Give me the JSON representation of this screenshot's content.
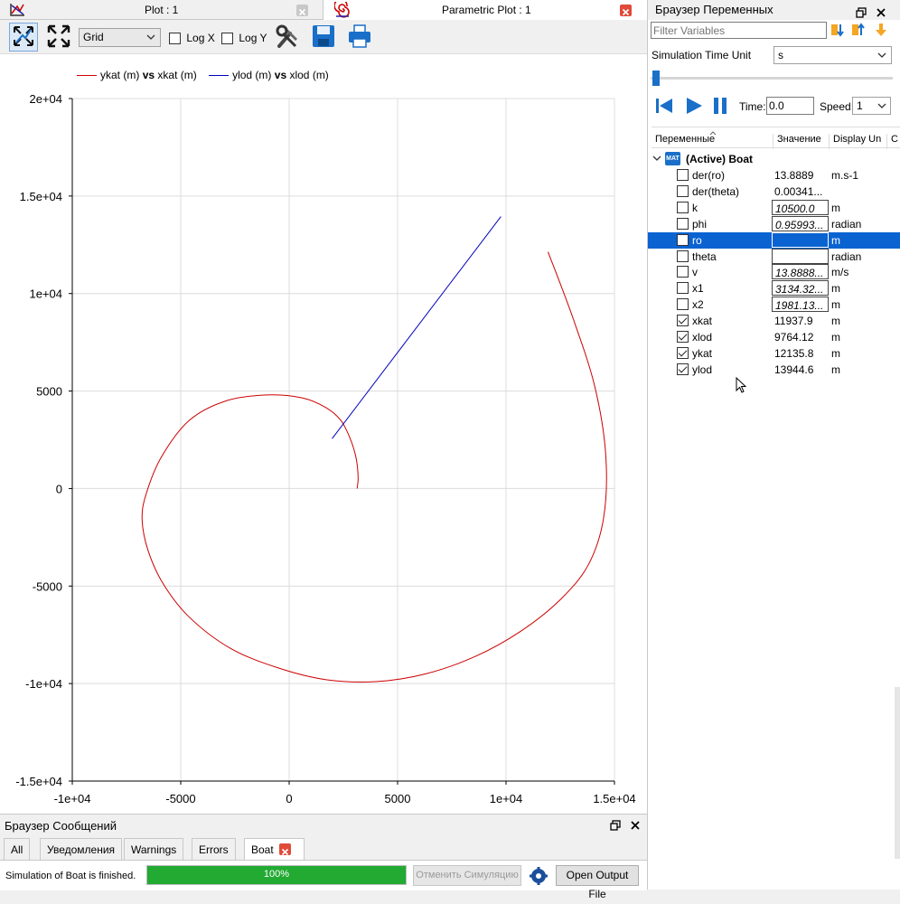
{
  "plot_window": {
    "tab_plot": "Plot : 1",
    "tab_parametric": "Parametric Plot : 1",
    "grid_select": "Grid",
    "logx_label": "Log X",
    "logy_label": "Log Y"
  },
  "colors": {
    "series1": "#cc0000",
    "series2": "#0000bb",
    "selected": "#0a63d1",
    "progress": "#22aa33"
  },
  "chart_data": {
    "type": "line",
    "legend": [
      {
        "y": "ykat (m)",
        "vs": "vs",
        "x": "xkat (m)"
      },
      {
        "y": "ylod (m)",
        "vs": "vs",
        "x": "xlod (m)"
      }
    ],
    "xlim": [
      -10000,
      15000
    ],
    "ylim": [
      -15000,
      20000
    ],
    "x_ticks": [
      "-1e+04",
      "-5000",
      "0",
      "5000",
      "1e+04",
      "1.5e+04"
    ],
    "y_ticks": [
      "2e+04",
      "1.5e+04",
      "1e+04",
      "5000",
      "0",
      "-5000",
      "-1e+04",
      "-1.5e+04"
    ],
    "grid": true,
    "legend_position": "top-left",
    "series": [
      {
        "name": "ykat (m) vs xkat (m)",
        "x": [
          3134,
          3180,
          3080,
          2800,
          2380,
          1700,
          600,
          -1000,
          -2900,
          -4600,
          -5900,
          -6600,
          -6780,
          -6500,
          -5800,
          -4600,
          -2700,
          -500,
          1700,
          4000,
          6300,
          8600,
          10700,
          12500,
          13800,
          14500,
          14600,
          14100,
          13100,
          11937
        ],
        "y": [
          0,
          600,
          1600,
          2600,
          3500,
          4150,
          4650,
          4800,
          4500,
          3500,
          1600,
          -300,
          -1600,
          -3200,
          -4900,
          -6600,
          -8200,
          -9200,
          -9800,
          -9900,
          -9500,
          -8600,
          -7300,
          -5700,
          -3900,
          -1500,
          1700,
          5200,
          8700,
          12136
        ]
      },
      {
        "name": "ylod (m) vs xlod (m)",
        "x": [
          1981,
          9764
        ],
        "y": [
          2560,
          13945
        ]
      }
    ]
  },
  "var_browser": {
    "title": "Браузер Переменных",
    "filter_placeholder": "Filter Variables",
    "time_unit_label": "Simulation Time Unit",
    "time_unit_value": "s",
    "time_label": "Time:",
    "time_value": "0.0",
    "speed_label": "Speed:",
    "speed_value": "1",
    "col_name": "Переменные",
    "col_value": "Значение",
    "col_unit": "Display Un",
    "col_extra": "C",
    "model_badge": "MAT",
    "model_name": "(Active) Boat",
    "rows": [
      {
        "name": "der(ro)",
        "value": "13.8889",
        "unit": "m.s-1",
        "checked": false,
        "box": false
      },
      {
        "name": "der(theta)",
        "value": "0.00341...",
        "unit": "",
        "checked": false,
        "box": false
      },
      {
        "name": "k",
        "value": "10500.0",
        "unit": "m",
        "checked": false,
        "box": true
      },
      {
        "name": "phi",
        "value": "0.95993...",
        "unit": "radian",
        "checked": false,
        "box": true
      },
      {
        "name": "ro",
        "value": "",
        "unit": "m",
        "checked": false,
        "box": true,
        "selected": true
      },
      {
        "name": "theta",
        "value": "",
        "unit": "radian",
        "checked": false,
        "box": true
      },
      {
        "name": "v",
        "value": "13.8888...",
        "unit": "m/s",
        "checked": false,
        "box": true
      },
      {
        "name": "x1",
        "value": "3134.32...",
        "unit": "m",
        "checked": false,
        "box": true
      },
      {
        "name": "x2",
        "value": "1981.13...",
        "unit": "m",
        "checked": false,
        "box": true
      },
      {
        "name": "xkat",
        "value": "11937.9",
        "unit": "m",
        "checked": true,
        "box": false
      },
      {
        "name": "xlod",
        "value": "9764.12",
        "unit": "m",
        "checked": true,
        "box": false
      },
      {
        "name": "ykat",
        "value": "12135.8",
        "unit": "m",
        "checked": true,
        "box": false
      },
      {
        "name": "ylod",
        "value": "13944.6",
        "unit": "m",
        "checked": true,
        "box": false
      }
    ]
  },
  "messages": {
    "title": "Браузер Сообщений",
    "tabs": [
      "All",
      "Уведомления",
      "Warnings",
      "Errors",
      "Boat"
    ],
    "status_text": "Simulation of Boat is finished.",
    "progress": 1.0,
    "progress_label": "100%",
    "cancel_label": "Отменить Симуляцию",
    "open_output_label": "Open Output File"
  }
}
